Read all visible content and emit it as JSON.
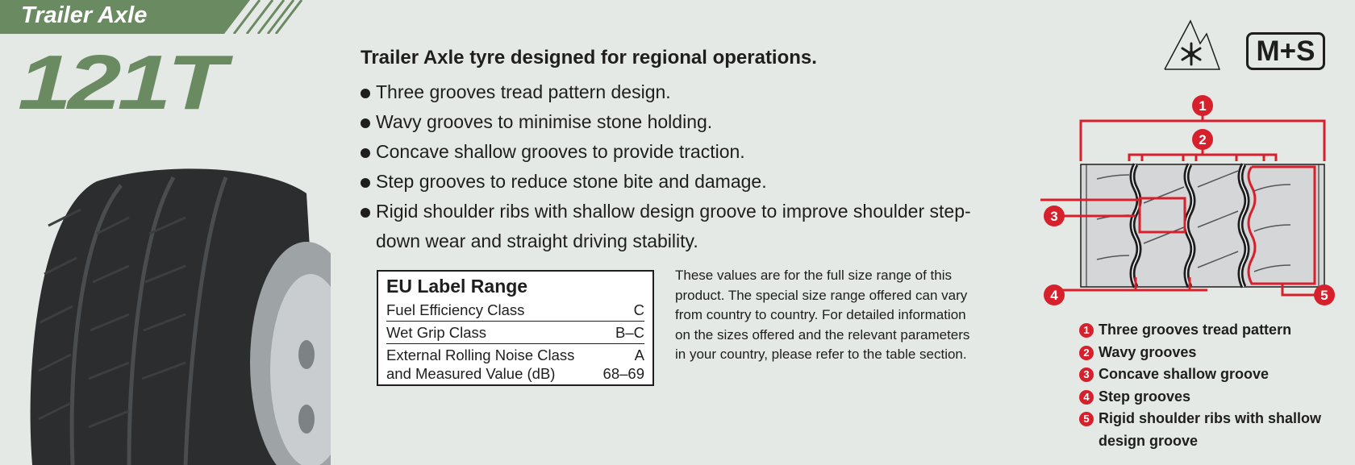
{
  "header": {
    "category": "Trailer Axle",
    "model": "121T"
  },
  "colors": {
    "brand_green": "#6a8a62",
    "accent_red": "#d6202c"
  },
  "description": {
    "heading": "Trailer Axle tyre designed for regional operations.",
    "features": [
      "Three grooves tread pattern design.",
      "Wavy grooves to minimise stone holding.",
      "Concave shallow grooves to provide traction.",
      "Step grooves to reduce stone bite and damage.",
      "Rigid shoulder ribs with shallow design groove to improve shoulder step-down wear and straight driving stability."
    ]
  },
  "eu_label": {
    "title": "EU Label Range",
    "rows": [
      {
        "label": "Fuel Efficiency Class",
        "value": "C"
      },
      {
        "label": "Wet Grip Class",
        "value": "B–C"
      },
      {
        "label": "External Rolling Noise Class",
        "value": "A"
      },
      {
        "label": "and Measured Value (dB)",
        "value": "68–69"
      }
    ]
  },
  "note": "These values are for the full size range of this product. The special size range offered can vary from country to country. For detailed information on the sizes offered and the relevant parameters in your country, please refer to the table section.",
  "icons": {
    "snow": "three-peak-mountain-snowflake-icon",
    "ms_label": "M+S"
  },
  "diagram": {
    "markers": [
      "1",
      "2",
      "3",
      "4",
      "5"
    ]
  },
  "legend": [
    {
      "num": "1",
      "text": "Three grooves tread pattern"
    },
    {
      "num": "2",
      "text": "Wavy grooves"
    },
    {
      "num": "3",
      "text": "Concave shallow groove"
    },
    {
      "num": "4",
      "text": "Step grooves"
    },
    {
      "num": "5",
      "text": "Rigid shoulder ribs with shallow design groove"
    }
  ]
}
